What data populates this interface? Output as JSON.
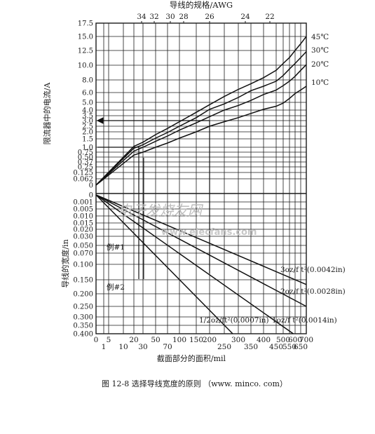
{
  "chart_data": {
    "type": "line",
    "top_axis": {
      "label": "导线的规格/AWG",
      "ticks": [
        "34",
        "32",
        "30",
        "28",
        "26",
        "24",
        "22"
      ]
    },
    "upper_panel": {
      "ylabel": "限流器中的电流/A",
      "y_ticks": [
        "17.5",
        "15.0",
        "12.5",
        "10.0",
        "8.0",
        "6.0",
        "5.0",
        "4.0",
        "3.5",
        "3.0",
        "2.5",
        "2.0",
        "1.5",
        "1.0",
        "0.75",
        "0.50",
        "0.37",
        "0.25",
        "0.125",
        "0.062",
        "0"
      ],
      "series": [
        {
          "name": "45℃",
          "x": [
            0,
            20,
            30,
            50,
            70,
            100,
            150,
            200,
            250,
            300,
            350,
            400,
            450,
            500,
            550,
            600,
            650,
            700
          ],
          "y": [
            0,
            1.05,
            1.3,
            1.8,
            2.3,
            2.9,
            3.8,
            4.7,
            5.6,
            6.5,
            7.4,
            8.3,
            9.3,
            10.3,
            11.3,
            12.5,
            13.7,
            15.0
          ]
        },
        {
          "name": "30℃",
          "x": [
            0,
            20,
            30,
            50,
            70,
            100,
            150,
            200,
            250,
            300,
            350,
            400,
            450,
            500,
            550,
            600,
            650,
            700
          ],
          "y": [
            0,
            0.95,
            1.15,
            1.55,
            1.95,
            2.5,
            3.3,
            4.1,
            4.8,
            5.5,
            6.3,
            7.0,
            7.8,
            8.6,
            9.5,
            10.3,
            11.3,
            12.3
          ]
        },
        {
          "name": "20℃",
          "x": [
            0,
            20,
            30,
            50,
            70,
            100,
            150,
            200,
            250,
            300,
            350,
            400,
            450,
            500,
            550,
            600,
            650,
            700
          ],
          "y": [
            0,
            0.8,
            1.0,
            1.35,
            1.7,
            2.15,
            2.8,
            3.4,
            4.0,
            4.6,
            5.2,
            5.8,
            6.4,
            7.1,
            7.8,
            8.5,
            9.3,
            10.1
          ]
        },
        {
          "name": "10℃",
          "x": [
            0,
            20,
            30,
            50,
            70,
            100,
            150,
            200,
            250,
            300,
            350,
            400,
            450,
            500,
            550,
            600,
            650,
            700
          ],
          "y": [
            0,
            0.6,
            0.75,
            1.0,
            1.25,
            1.55,
            2.0,
            2.5,
            2.9,
            3.3,
            3.7,
            4.1,
            4.5,
            4.9,
            5.4,
            5.9,
            6.4,
            7.0
          ]
        }
      ]
    },
    "lower_panel": {
      "ylabel": "导线的宽度/in",
      "y_ticks": [
        "0",
        "0.001",
        "0.005",
        "0.010",
        "0.015",
        "0.020",
        "0.030",
        "0.050",
        "0.070",
        "0.100",
        "0.150",
        "0.200",
        "0.250",
        "0.300",
        "0.350",
        "0.400"
      ],
      "series": [
        {
          "name": "3oz/ft²(0.0042in)",
          "x": [
            0,
            700
          ],
          "y": [
            0,
            0.167
          ]
        },
        {
          "name": "2oz/ft²(0.0028in)",
          "x": [
            0,
            700
          ],
          "y": [
            0,
            0.25
          ]
        },
        {
          "name": "1oz/ft²(0.0014in)",
          "x": [
            0,
            584
          ],
          "y": [
            0,
            0.4
          ]
        },
        {
          "name": "1/2oz/ft²(0.0007in)",
          "x": [
            0,
            280
          ],
          "y": [
            0,
            0.4
          ]
        }
      ],
      "annotations": [
        "例#1",
        "例#2"
      ]
    },
    "x_ticks_row1": [
      "0",
      "5",
      "20",
      "50",
      "100",
      "150",
      "200",
      "300",
      "400",
      "500",
      "600",
      "700"
    ],
    "x_ticks_row2": [
      "1",
      "10",
      "30",
      "70",
      "250",
      "350",
      "450",
      "550",
      "650"
    ],
    "xlabel": "截面部分的面积/mil"
  },
  "series_labels": {
    "c45": "45℃",
    "c30": "30℃",
    "c20": "20℃",
    "c10": "10℃",
    "oz3": "3oz/f t²(0.0042in)",
    "oz2": "2oz/f t²(0.0028in)",
    "oz1": "1oz/f t²(0.0014in)",
    "ozh": "1/2oz/ft²(0.0007in)"
  },
  "figure_caption": "图 12-8    选择导线宽度的原则 （www. minco. com）",
  "watermark": {
    "cn": "电子发烧友网",
    "en": "www.elecfans.com"
  },
  "colors": {
    "grid": "#1a1a1a",
    "line": "#111111",
    "watermark": "#bdbdbd"
  }
}
